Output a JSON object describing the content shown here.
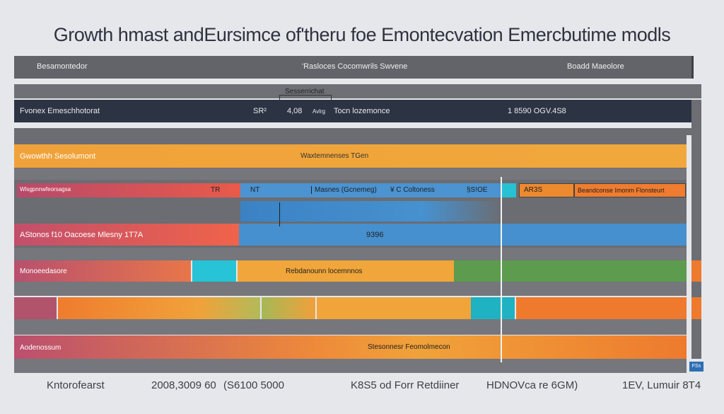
{
  "chart_data": {
    "type": "bar",
    "title": "Growth hmast andEursimce of'theru foe Emontecvation Emercbutime modls",
    "header": {
      "left": "Besamontedor",
      "center": "'Rasloces Cocomwrils Swvene",
      "right": "Boadd Maeolore"
    },
    "bracket_label": "Sesserrichat",
    "dark_row": {
      "label": "Fvonex Emeschhotorat",
      "values": [
        "SR²",
        "4,08",
        "Avlrg",
        "Tocn lozemonce"
      ],
      "right_value": "1 8590 OGV.4S8"
    },
    "rows": [
      {
        "label": "Gwowthh Sesolumont",
        "center_text": "Waxtemnenses TGen"
      },
      {
        "label": "Wlsgpnnwfeorsagsa",
        "segment_labels": [
          "TR",
          "NT",
          "Masnes (Gcnemeg)",
          "¥ C Coltoness",
          "§S!OE",
          "AR3S",
          "Beandconse Imonm Flonsteurt"
        ]
      },
      {
        "label": "AStonos f10 Oacoese Mlesny 1T7A",
        "center_text": "9396"
      },
      {
        "label": "Monoeedasore",
        "center_text": "Rebdanounn locemnnos"
      },
      {
        "label": "",
        "center_text": ""
      },
      {
        "label": "Aodenossum",
        "center_text": "Stesonnesr Feomolmecon"
      }
    ],
    "x_axis_ticks": [
      "Kntorofearst",
      "2008,3009 60",
      "(S6100 5000",
      "K8S5 od Forr Retdiiner",
      "HDNOVca re 6GM)",
      "1EV, Lumuir 8T4"
    ],
    "corner_badge": "FSs"
  },
  "colors": {
    "orange": "#f0a33a",
    "deep_orange": "#ee7a2e",
    "blue": "#4690cf",
    "teal": "#1fb7c9",
    "green": "#5d9b4e",
    "red": "#e8584a",
    "grey_row": "#6b6d72",
    "dark_navy": "#2c3444"
  }
}
